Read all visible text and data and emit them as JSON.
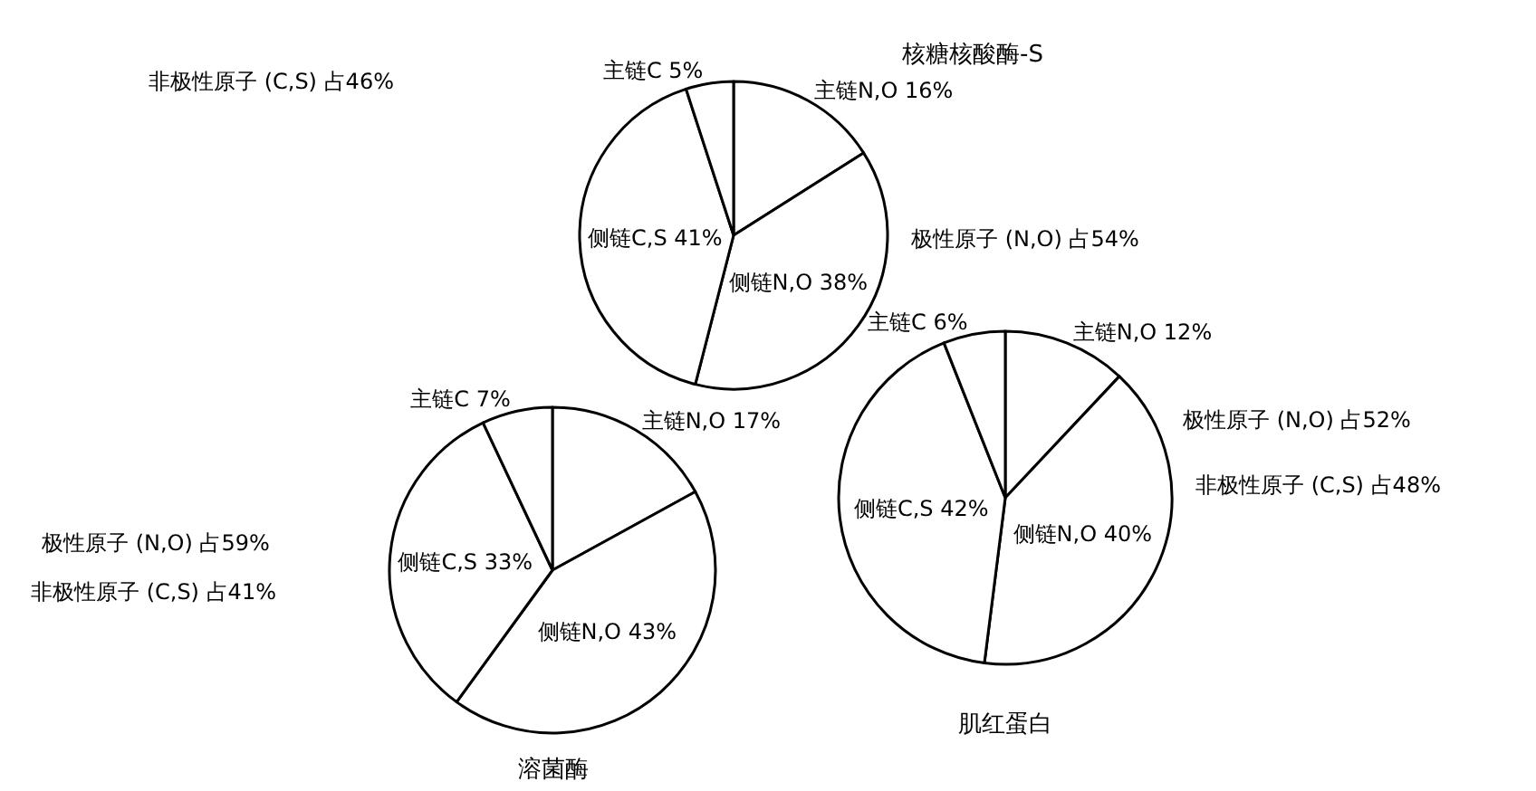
{
  "chart_data": [
    {
      "type": "pie",
      "title": "核糖核酸酶-S",
      "categories": [
        "主链N,O",
        "侧链N,O",
        "侧链C,S",
        "主链C"
      ],
      "values": [
        16,
        38,
        41,
        5
      ],
      "colors": [
        "#ffffff",
        "#ffffff",
        "#ffffff",
        "#ffffff"
      ],
      "value_labels": [
        "16%",
        "38%",
        "41%",
        "5%"
      ],
      "annotations": [
        "非极性原子 (C,S) 占46%",
        "极性原子 (N,O) 占54%"
      ]
    },
    {
      "type": "pie",
      "title": "溶菌酶",
      "categories": [
        "主链N,O",
        "侧链N,O",
        "侧链C,S",
        "主链C"
      ],
      "values": [
        17,
        43,
        33,
        7
      ],
      "colors": [
        "#ffffff",
        "#ffffff",
        "#ffffff",
        "#ffffff"
      ],
      "value_labels": [
        "17%",
        "43%",
        "33%",
        "7%"
      ],
      "annotations": [
        "极性原子 (N,O) 占59%",
        "非极性原子 (C,S) 占41%"
      ]
    },
    {
      "type": "pie",
      "title": "肌红蛋白",
      "categories": [
        "主链N,O",
        "侧链N,O",
        "侧链C,S",
        "主链C"
      ],
      "values": [
        12,
        40,
        42,
        6
      ],
      "colors": [
        "#ffffff",
        "#ffffff",
        "#ffffff",
        "#ffffff"
      ],
      "value_labels": [
        "12%",
        "40%",
        "42%",
        "6%"
      ],
      "annotations": [
        "极性原子 (N,O) 占52%",
        "非极性原子 (C,S) 占48%"
      ]
    }
  ]
}
